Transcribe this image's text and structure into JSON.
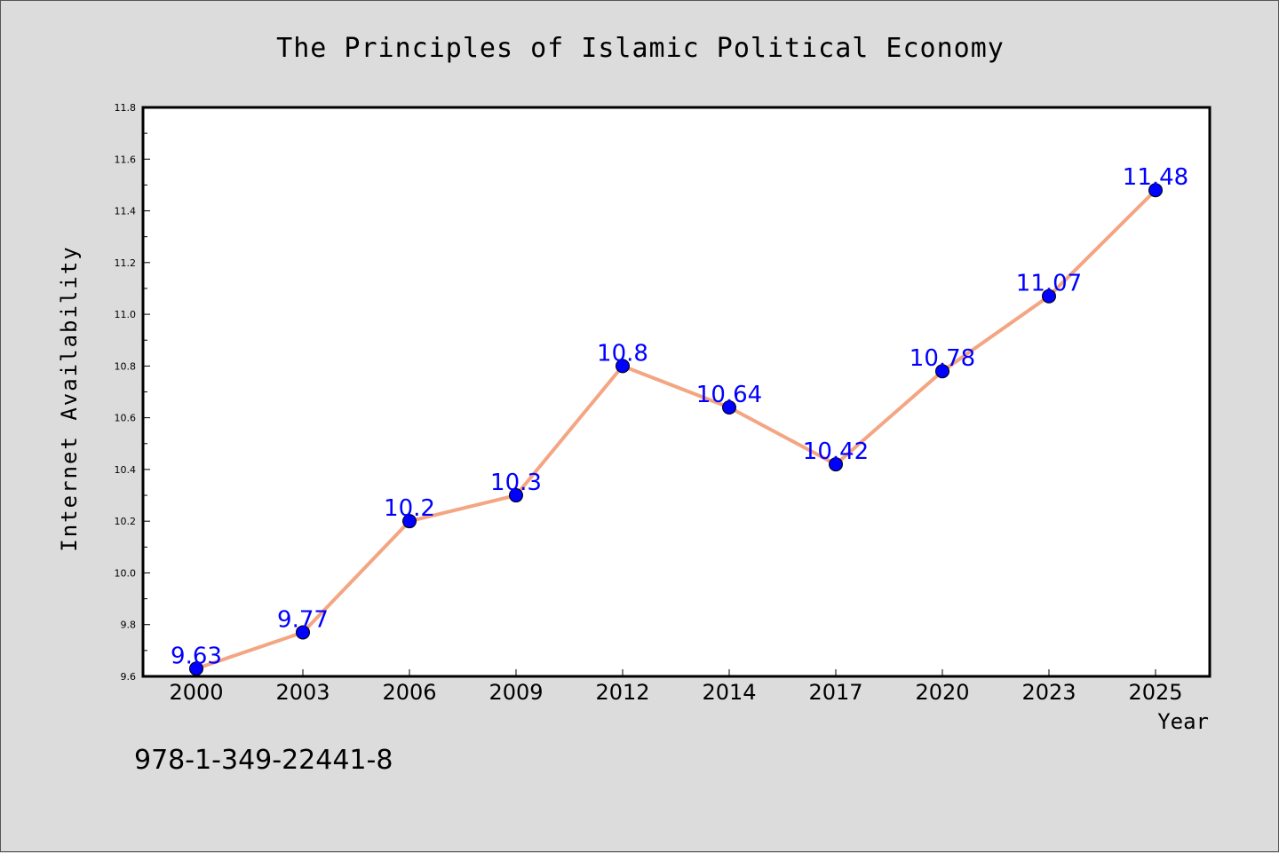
{
  "chart_data": {
    "type": "line",
    "title": "The Principles of Islamic Political Economy",
    "xlabel": "Year",
    "ylabel": "Internet Availability",
    "categories": [
      "2000",
      "2003",
      "2006",
      "2009",
      "2012",
      "2014",
      "2017",
      "2020",
      "2023",
      "2025"
    ],
    "series": [
      {
        "values": [
          9.63,
          9.77,
          10.2,
          10.3,
          10.8,
          10.64,
          10.42,
          10.78,
          11.07,
          11.48
        ],
        "line_color": "#f4a582",
        "marker_color": "#0000ff"
      }
    ],
    "data_labels": [
      "9.63",
      "9.77",
      "10.2",
      "10.3",
      "10.8",
      "10.64",
      "10.42",
      "10.78",
      "11.07",
      "11.48"
    ],
    "ylim": [
      9.6,
      11.8
    ],
    "yticks": [
      "9.6",
      "9.8",
      "10.0",
      "10.2",
      "10.4",
      "10.6",
      "10.8",
      "11.0",
      "11.2",
      "11.4",
      "11.6",
      "11.8"
    ],
    "grid": false,
    "label_color": "#0000ff"
  },
  "footer": {
    "isbn": "978-1-349-22441-8"
  }
}
